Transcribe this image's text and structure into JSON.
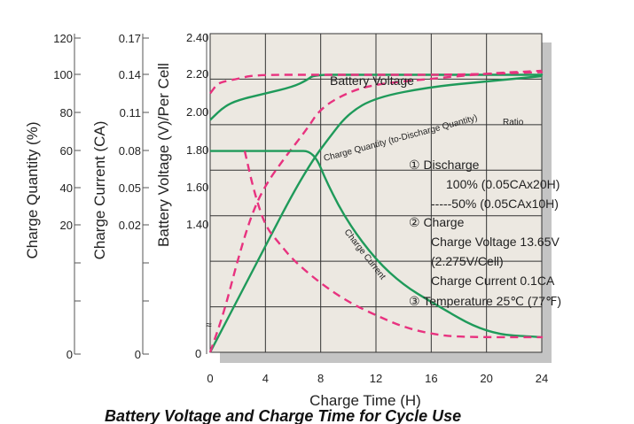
{
  "chart_data": {
    "type": "line",
    "title": "Battery Voltage and Charge Time for Cycle Use",
    "clipped_top_text": "",
    "xlabel": "Charge Time (H)",
    "x_ticks": [
      "0",
      "4",
      "8",
      "12",
      "16",
      "20",
      "24"
    ],
    "xlim": [
      0,
      24
    ],
    "axes": {
      "charge_quantity": {
        "label": "Charge Quantity (%)",
        "ticks": [
          "120",
          "100",
          "80",
          "60",
          "40",
          "20",
          "0"
        ],
        "ylim": [
          0,
          120
        ]
      },
      "charge_current": {
        "label": "Charge Current (CA)",
        "ticks": [
          "0.17",
          "0.14",
          "0.11",
          "0.08",
          "0.05",
          "0.02",
          "0"
        ],
        "ylim": [
          -0.02,
          0.17
        ]
      },
      "battery_voltage": {
        "label": "Battery Voltage (V)/Per Cell",
        "ticks": [
          "2.40",
          "2.20",
          "2.00",
          "1.80",
          "1.60",
          "1.40",
          "0"
        ],
        "ylim": [
          0,
          2.4
        ]
      }
    },
    "series": [
      {
        "name": "Battery Voltage",
        "axis": "battery_voltage",
        "style": "solid",
        "variant": "100%",
        "points": [
          [
            0,
            1.75
          ],
          [
            1,
            1.85
          ],
          [
            2,
            1.9
          ],
          [
            4,
            1.95
          ],
          [
            6,
            2.0
          ],
          [
            7,
            2.05
          ],
          [
            7.5,
            2.09
          ],
          [
            10,
            2.09
          ],
          [
            16,
            2.09
          ],
          [
            24,
            2.09
          ]
        ]
      },
      {
        "name": "Battery Voltage",
        "axis": "battery_voltage",
        "style": "dashed",
        "variant": "50%",
        "points": [
          [
            0,
            1.95
          ],
          [
            0.5,
            2.02
          ],
          [
            1,
            2.04
          ],
          [
            2,
            2.06
          ],
          [
            3.2,
            2.09
          ],
          [
            8,
            2.09
          ],
          [
            12,
            2.09
          ],
          [
            18,
            2.09
          ],
          [
            24,
            2.11
          ]
        ]
      },
      {
        "name": "Charge Quantity (to-Discharge Quantity) Ratio",
        "axis": "charge_quantity",
        "style": "solid",
        "variant": "100%",
        "points": [
          [
            0,
            0
          ],
          [
            2,
            20
          ],
          [
            4,
            40
          ],
          [
            6,
            60
          ],
          [
            7.5,
            73
          ],
          [
            8.5,
            80
          ],
          [
            10,
            90
          ],
          [
            12,
            96
          ],
          [
            16,
            100
          ],
          [
            20,
            102
          ],
          [
            24,
            104
          ]
        ]
      },
      {
        "name": "Charge Quantity (to-Discharge Quantity) Ratio",
        "axis": "charge_quantity",
        "style": "dashed",
        "variant": "50%",
        "points": [
          [
            0,
            0
          ],
          [
            1,
            15
          ],
          [
            2,
            35
          ],
          [
            3,
            52
          ],
          [
            4,
            63
          ],
          [
            5.5,
            74
          ],
          [
            7,
            84
          ],
          [
            8,
            92
          ],
          [
            10,
            98
          ],
          [
            12,
            101
          ],
          [
            16,
            103
          ],
          [
            20,
            105
          ],
          [
            24,
            106
          ]
        ]
      },
      {
        "name": "Charge Current",
        "axis": "charge_current",
        "style": "solid",
        "variant": "100%",
        "points": [
          [
            0,
            0.1
          ],
          [
            2,
            0.1
          ],
          [
            4,
            0.1
          ],
          [
            6,
            0.1
          ],
          [
            7.5,
            0.1
          ],
          [
            8.5,
            0.08
          ],
          [
            10,
            0.057
          ],
          [
            12,
            0.035
          ],
          [
            14,
            0.02
          ],
          [
            16,
            0.01
          ],
          [
            20,
            -0.009
          ],
          [
            24,
            -0.011
          ]
        ]
      },
      {
        "name": "Charge Current",
        "axis": "charge_current",
        "style": "dashed",
        "variant": "50%",
        "points": [
          [
            2.5,
            0.1
          ],
          [
            3.2,
            0.075
          ],
          [
            4,
            0.055
          ],
          [
            5,
            0.045
          ],
          [
            6,
            0.035
          ],
          [
            8,
            0.021
          ],
          [
            10,
            0.01
          ],
          [
            12,
            0.002
          ],
          [
            14,
            -0.005
          ],
          [
            16,
            -0.009
          ],
          [
            18,
            -0.011
          ],
          [
            24,
            -0.011
          ]
        ]
      }
    ],
    "curve_labels": {
      "battery_voltage": "Battery Voltage",
      "charge_quantity": "Charge Quantity (to-Discharge Quantity)",
      "charge_quantity_suffix": "Ratio",
      "charge_current": "Charge Current"
    },
    "annotations": [
      "① Discharge",
      "100% (0.05CAx20H)",
      "-----50% (0.05CAx10H)",
      "② Charge",
      "Charge Voltage 13.65V",
      "(2.275V/Cell)",
      "Charge Current 0.1CA",
      "③ Temperature 25℃ (77℉)"
    ],
    "colors": {
      "plot_bg": "#ece8e1",
      "shadow": "#c4c4c4",
      "grid": "#333333",
      "solid_series": "#1f9a5a",
      "dashed_series": "#e8327f",
      "axis": "#555555"
    },
    "grid": true
  }
}
